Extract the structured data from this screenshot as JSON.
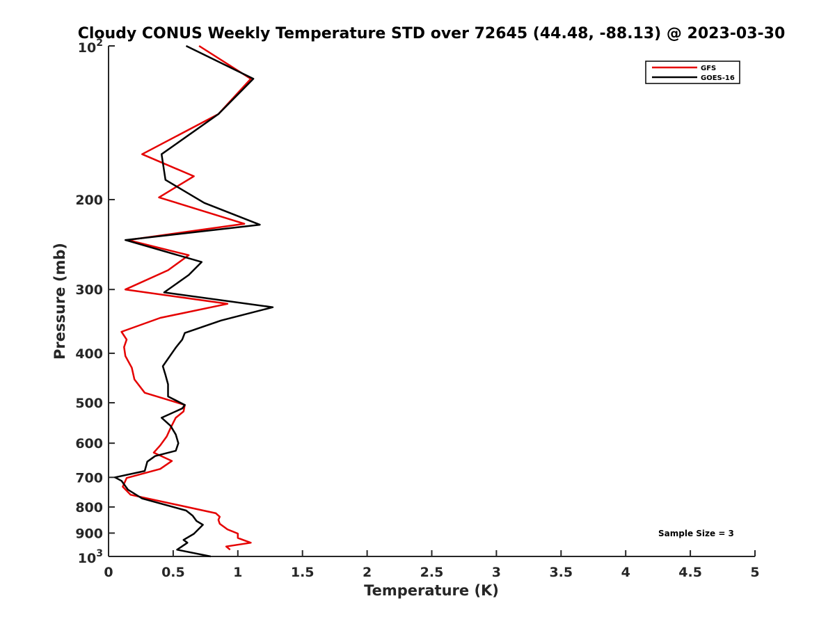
{
  "chart_data": {
    "type": "line",
    "title": "Cloudy CONUS Weekly Temperature STD over 72645 (44.48, -88.13) @ 2023-03-30",
    "xlabel": "Temperature (K)",
    "ylabel": "Pressure (mb)",
    "xlim": [
      0,
      5
    ],
    "ylim": [
      1000,
      100
    ],
    "y_scale": "log",
    "y_reversed": true,
    "grid": false,
    "legend_position": "top-right",
    "x_ticks": [
      "0",
      "0.5",
      "1",
      "1.5",
      "2",
      "2.5",
      "3",
      "3.5",
      "4",
      "4.5",
      "5"
    ],
    "x_tick_values": [
      0,
      0.5,
      1,
      1.5,
      2,
      2.5,
      3,
      3.5,
      4,
      4.5,
      5
    ],
    "y_ticks": [
      {
        "value": 100,
        "base": "10",
        "exp": "2",
        "label": ""
      },
      {
        "value": 200,
        "label": "200"
      },
      {
        "value": 300,
        "label": "300"
      },
      {
        "value": 400,
        "label": "400"
      },
      {
        "value": 500,
        "label": "500"
      },
      {
        "value": 600,
        "label": "600"
      },
      {
        "value": 700,
        "label": "700"
      },
      {
        "value": 800,
        "label": "800"
      },
      {
        "value": 900,
        "label": "900"
      },
      {
        "value": 1000,
        "base": "10",
        "exp": "3",
        "label": ""
      }
    ],
    "annotation": "Sample Size = 3",
    "series": [
      {
        "name": "GFS",
        "color": "#e50000",
        "x": [
          0.7,
          1.1,
          0.85,
          0.26,
          0.66,
          0.39,
          1.05,
          0.15,
          0.62,
          0.46,
          0.13,
          0.92,
          0.4,
          0.1,
          0.14,
          0.12,
          0.13,
          0.18,
          0.2,
          0.28,
          0.59,
          0.58,
          0.52,
          0.48,
          0.45,
          0.4,
          0.35,
          0.49,
          0.4,
          0.14,
          0.11,
          0.17,
          0.83,
          0.86,
          0.85,
          0.86,
          0.92,
          1.0,
          1.0,
          1.1,
          0.91,
          0.94
        ],
        "y": [
          100,
          116,
          136,
          163,
          180,
          198,
          223,
          240,
          257,
          275,
          300,
          320,
          341,
          363,
          376,
          389,
          405,
          427,
          450,
          478,
          505,
          520,
          535,
          560,
          582,
          606,
          626,
          650,
          674,
          702,
          730,
          757,
          823,
          836,
          848,
          863,
          885,
          902,
          920,
          940,
          956,
          970
        ]
      },
      {
        "name": "GOES-16",
        "color": "#000000",
        "x": [
          0.6,
          1.12,
          0.85,
          0.41,
          0.44,
          0.74,
          1.17,
          0.13,
          0.72,
          0.62,
          0.43,
          1.27,
          0.87,
          0.59,
          0.57,
          0.52,
          0.42,
          0.44,
          0.46,
          0.46,
          0.59,
          0.57,
          0.41,
          0.48,
          0.52,
          0.54,
          0.52,
          0.36,
          0.3,
          0.28,
          0.05,
          0.1,
          0.15,
          0.26,
          0.6,
          0.65,
          0.68,
          0.73,
          0.66,
          0.58,
          0.61,
          0.57,
          0.53,
          0.79
        ],
        "y": [
          100,
          116,
          136,
          163,
          183,
          203,
          224,
          240,
          265,
          281,
          304,
          325,
          345,
          365,
          376,
          390,
          424,
          441,
          460,
          486,
          505,
          513,
          535,
          555,
          577,
          600,
          621,
          636,
          652,
          680,
          700,
          711,
          740,
          770,
          813,
          832,
          852,
          867,
          903,
          928,
          940,
          955,
          970,
          1000
        ]
      }
    ]
  }
}
